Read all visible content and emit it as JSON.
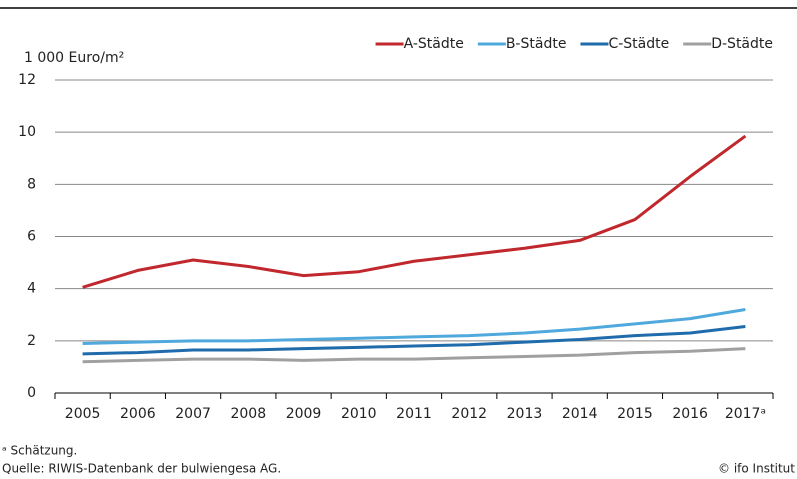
{
  "chart_data": {
    "type": "line",
    "y_label": "1 000 Euro/m²",
    "categories": [
      "2005",
      "2006",
      "2007",
      "2008",
      "2009",
      "2010",
      "2011",
      "2012",
      "2013",
      "2014",
      "2015",
      "2016",
      "2017ᵃ"
    ],
    "series": [
      {
        "name": "A-Städte",
        "color": "#c0282d",
        "values": [
          4.05,
          4.7,
          5.1,
          4.85,
          4.5,
          4.65,
          5.05,
          5.3,
          5.55,
          5.85,
          6.65,
          8.3,
          9.85
        ]
      },
      {
        "name": "B-Städte",
        "color": "#4fa9dd",
        "values": [
          1.9,
          1.95,
          2.0,
          2.0,
          2.05,
          2.1,
          2.15,
          2.2,
          2.3,
          2.45,
          2.65,
          2.85,
          3.2
        ]
      },
      {
        "name": "C-Städte",
        "color": "#1f6bab",
        "values": [
          1.5,
          1.55,
          1.65,
          1.65,
          1.7,
          1.75,
          1.8,
          1.85,
          1.95,
          2.05,
          2.2,
          2.3,
          2.55
        ]
      },
      {
        "name": "D-Städte",
        "color": "#a0a0a0",
        "values": [
          1.2,
          1.25,
          1.3,
          1.3,
          1.25,
          1.3,
          1.3,
          1.35,
          1.4,
          1.45,
          1.55,
          1.6,
          1.7
        ]
      }
    ],
    "ylim": [
      0,
      12
    ],
    "yticks": [
      0,
      2,
      4,
      6,
      8,
      10,
      12
    ],
    "grid": true,
    "legend": "top-right",
    "footnote": "ᵃ Schätzung.",
    "source": "Quelle: RIWIS-Datenbank der bulwiengesa AG.",
    "credit": "© ifo Institut"
  }
}
